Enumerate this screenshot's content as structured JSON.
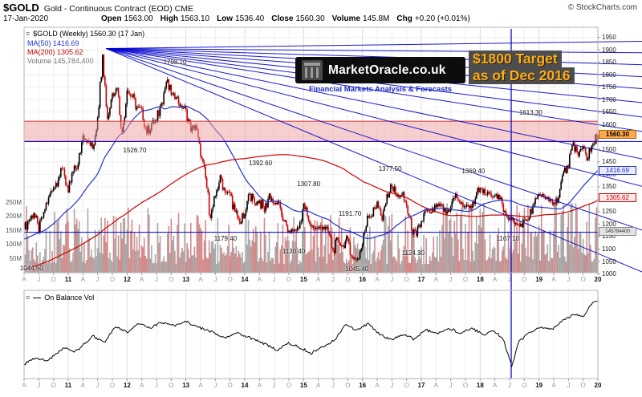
{
  "header": {
    "symbol": "$GOLD",
    "title": "Gold - Continuous Contract (EOD) CME",
    "copyright": "© StockCharts.com",
    "date": "17-Jan-2020",
    "quote": [
      {
        "label": "Open",
        "value": "1563.00"
      },
      {
        "label": "High",
        "value": "1563.10"
      },
      {
        "label": "Low",
        "value": "1536.40"
      },
      {
        "label": "Close",
        "value": "1560.30"
      },
      {
        "label": "Volume",
        "value": "145.8M"
      },
      {
        "label": "Chg",
        "value": "+0.20 (+0.01%)"
      }
    ]
  },
  "legend": {
    "main_title": "$GOLD (Weekly) 1560.30 (17 Jan)",
    "ma50": "MA(50) 1416.69",
    "ma200": "MA(200) 1305.62",
    "volume": "Volume 145,784,400",
    "obv": "On Balance Vol"
  },
  "watermark": {
    "text": "MarketOracle.co.uk",
    "subtext": "Financial Markets Analysis & Forecasts"
  },
  "target_note": {
    "line1": "$1800 Target",
    "line2": "as of Dec 2016"
  },
  "axes": {
    "right_labels": [
      "1950",
      "1900",
      "1850",
      "1800",
      "1750",
      "1700",
      "1650",
      "1600",
      "1550",
      "1500",
      "1450",
      "1400",
      "1350",
      "1300",
      "1250",
      "1200",
      "1150",
      "1100",
      "1050",
      "1000"
    ],
    "left_labels": [
      "250M",
      "200M",
      "150M",
      "100M",
      "50M"
    ],
    "x_labels": [
      "A",
      "J",
      "O",
      "11",
      "A",
      "J",
      "O",
      "12",
      "A",
      "J",
      "O",
      "13",
      "A",
      "J",
      "O",
      "14",
      "A",
      "J",
      "O",
      "15",
      "A",
      "J",
      "O",
      "16",
      "A",
      "J",
      "O",
      "17",
      "A",
      "J",
      "O",
      "18",
      "A",
      "J",
      "O",
      "19",
      "A",
      "J",
      "O",
      "20"
    ],
    "price_boxes": [
      {
        "id": "last",
        "text": "1560.30",
        "price": 1560.3
      },
      {
        "id": "ma50",
        "text": "1416.69",
        "price": 1416.69
      },
      {
        "id": "ma200",
        "text": "1305.62",
        "price": 1305.62
      },
      {
        "id": "volume",
        "text": "145784400",
        "volume": 145784400
      }
    ]
  },
  "colors": {
    "candle_up": "#000000",
    "candle_down": "#cc0000",
    "ma50": "#2233cc",
    "ma200": "#cc0000",
    "volume_up": "#9a9a9a",
    "volume_down": "#cc7777",
    "trend": "#0000cc",
    "band_fill": "#f2a0a0",
    "band_edge": "#cc3333",
    "obv": "#000000",
    "frame": "#b5b5b5"
  },
  "chart_data": {
    "type": "candlestick",
    "title": "$GOLD Gold - Continuous Contract (EOD) CME, Weekly",
    "x_range": "Apr 2010 - Jan 2020",
    "freq": "monthly_closes_interpolated_to_weekly",
    "ylim": [
      1005,
      1955
    ],
    "volume_axis_max": 250000000,
    "overlays": [
      "MA(50) 1416.69",
      "MA(200) 1305.62",
      "Volume 145,784,400"
    ],
    "last_bar": {
      "open": 1563.0,
      "high": 1563.1,
      "low": 1536.4,
      "close": 1560.3,
      "volume": 145784400
    },
    "closes": [
      1180,
      1215,
      1244,
      1169,
      1248,
      1307,
      1346,
      1385,
      1421,
      1327,
      1411,
      1439,
      1556,
      1536,
      1502,
      1628,
      1880,
      1622,
      1725,
      1746,
      1566,
      1737,
      1711,
      1668,
      1664,
      1564,
      1604,
      1615,
      1685,
      1771,
      1719,
      1710,
      1676,
      1661,
      1572,
      1596,
      1472,
      1387,
      1224,
      1312,
      1396,
      1327,
      1323,
      1250,
      1202,
      1240,
      1321,
      1283,
      1295,
      1250,
      1322,
      1281,
      1287,
      1211,
      1173,
      1175,
      1184,
      1283,
      1213,
      1183,
      1184,
      1189,
      1171,
      1095,
      1134,
      1115,
      1141,
      1065,
      1060,
      1116,
      1234,
      1232,
      1290,
      1215,
      1320,
      1351,
      1311,
      1317,
      1273,
      1178,
      1152,
      1211,
      1253,
      1247,
      1268,
      1275,
      1242,
      1269,
      1322,
      1283,
      1271,
      1273,
      1303,
      1345,
      1318,
      1325,
      1315,
      1300,
      1253,
      1223,
      1201,
      1192,
      1215,
      1226,
      1281,
      1321,
      1313,
      1292,
      1286,
      1306,
      1410,
      1428,
      1529,
      1473,
      1513,
      1464,
      1523,
      1560.3
    ],
    "obv_points": [
      [
        0,
        0.88
      ],
      [
        0.02,
        0.8
      ],
      [
        0.04,
        0.84
      ],
      [
        0.07,
        0.66
      ],
      [
        0.09,
        0.72
      ],
      [
        0.12,
        0.52
      ],
      [
        0.14,
        0.6
      ],
      [
        0.16,
        0.4
      ],
      [
        0.18,
        0.47
      ],
      [
        0.2,
        0.36
      ],
      [
        0.22,
        0.42
      ],
      [
        0.24,
        0.34
      ],
      [
        0.26,
        0.39
      ],
      [
        0.28,
        0.33
      ],
      [
        0.3,
        0.4
      ],
      [
        0.33,
        0.47
      ],
      [
        0.35,
        0.55
      ],
      [
        0.37,
        0.48
      ],
      [
        0.4,
        0.56
      ],
      [
        0.42,
        0.62
      ],
      [
        0.44,
        0.7
      ],
      [
        0.46,
        0.61
      ],
      [
        0.48,
        0.66
      ],
      [
        0.5,
        0.74
      ],
      [
        0.52,
        0.66
      ],
      [
        0.54,
        0.58
      ],
      [
        0.56,
        0.38
      ],
      [
        0.58,
        0.45
      ],
      [
        0.6,
        0.36
      ],
      [
        0.62,
        0.5
      ],
      [
        0.64,
        0.57
      ],
      [
        0.66,
        0.5
      ],
      [
        0.68,
        0.56
      ],
      [
        0.7,
        0.44
      ],
      [
        0.72,
        0.5
      ],
      [
        0.74,
        0.42
      ],
      [
        0.76,
        0.48
      ],
      [
        0.78,
        0.42
      ],
      [
        0.8,
        0.5
      ],
      [
        0.82,
        0.46
      ],
      [
        0.835,
        0.56
      ],
      [
        0.85,
        0.9
      ],
      [
        0.862,
        0.6
      ],
      [
        0.88,
        0.48
      ],
      [
        0.9,
        0.4
      ],
      [
        0.92,
        0.44
      ],
      [
        0.94,
        0.32
      ],
      [
        0.96,
        0.24
      ],
      [
        0.975,
        0.28
      ],
      [
        0.99,
        0.1
      ],
      [
        1,
        0.06
      ]
    ]
  },
  "annotations": {
    "price_labels": [
      {
        "text": "1044.50",
        "fx": 0.013,
        "price": 1022
      },
      {
        "text": "1526.70",
        "fx": 0.193,
        "price": 1497
      },
      {
        "text": "1798.10",
        "fx": 0.263,
        "price": 1850
      },
      {
        "text": "1392.60",
        "fx": 0.412,
        "price": 1446
      },
      {
        "text": "1179.40",
        "fx": 0.351,
        "price": 1142
      },
      {
        "text": "1130.40",
        "fx": 0.47,
        "price": 1090
      },
      {
        "text": "1307.80",
        "fx": 0.496,
        "price": 1362
      },
      {
        "text": "1191.70",
        "fx": 0.568,
        "price": 1243
      },
      {
        "text": "1045.40",
        "fx": 0.58,
        "price": 1019
      },
      {
        "text": "1377.50",
        "fx": 0.638,
        "price": 1422
      },
      {
        "text": "1124.30",
        "fx": 0.678,
        "price": 1084
      },
      {
        "text": "1369.40",
        "fx": 0.783,
        "price": 1412
      },
      {
        "text": "1167.10",
        "fx": 0.843,
        "price": 1141
      },
      {
        "text": "1613.30",
        "fx": 0.883,
        "price": 1648
      }
    ],
    "band": {
      "from": 1532,
      "to": 1613.3
    },
    "fan_origin": {
      "fx": 0.143,
      "price": 1905
    },
    "fan_targets": [
      {
        "fx": 1.077,
        "price": 1934
      },
      {
        "fx": 1.077,
        "price": 1888
      },
      {
        "fx": 1.077,
        "price": 1840
      },
      {
        "fx": 1.077,
        "price": 1792
      },
      {
        "fx": 1.077,
        "price": 1744
      },
      {
        "fx": 1.077,
        "price": 1688
      },
      {
        "fx": 1.077,
        "price": 1630
      },
      {
        "fx": 1.077,
        "price": 1572
      },
      {
        "fx": 1.077,
        "price": 1462
      },
      {
        "fx": 1.077,
        "price": 1352
      },
      {
        "fx": 1.077,
        "price": 1176
      },
      {
        "fx": 1.077,
        "price": 1008
      }
    ],
    "hlines": [
      {
        "price": 1532,
        "fx1": 0,
        "fx2": 1.077
      },
      {
        "price": 1167.1,
        "fx1": 0,
        "fx2": 1.0
      }
    ],
    "vline": {
      "fx": 0.849
    }
  }
}
